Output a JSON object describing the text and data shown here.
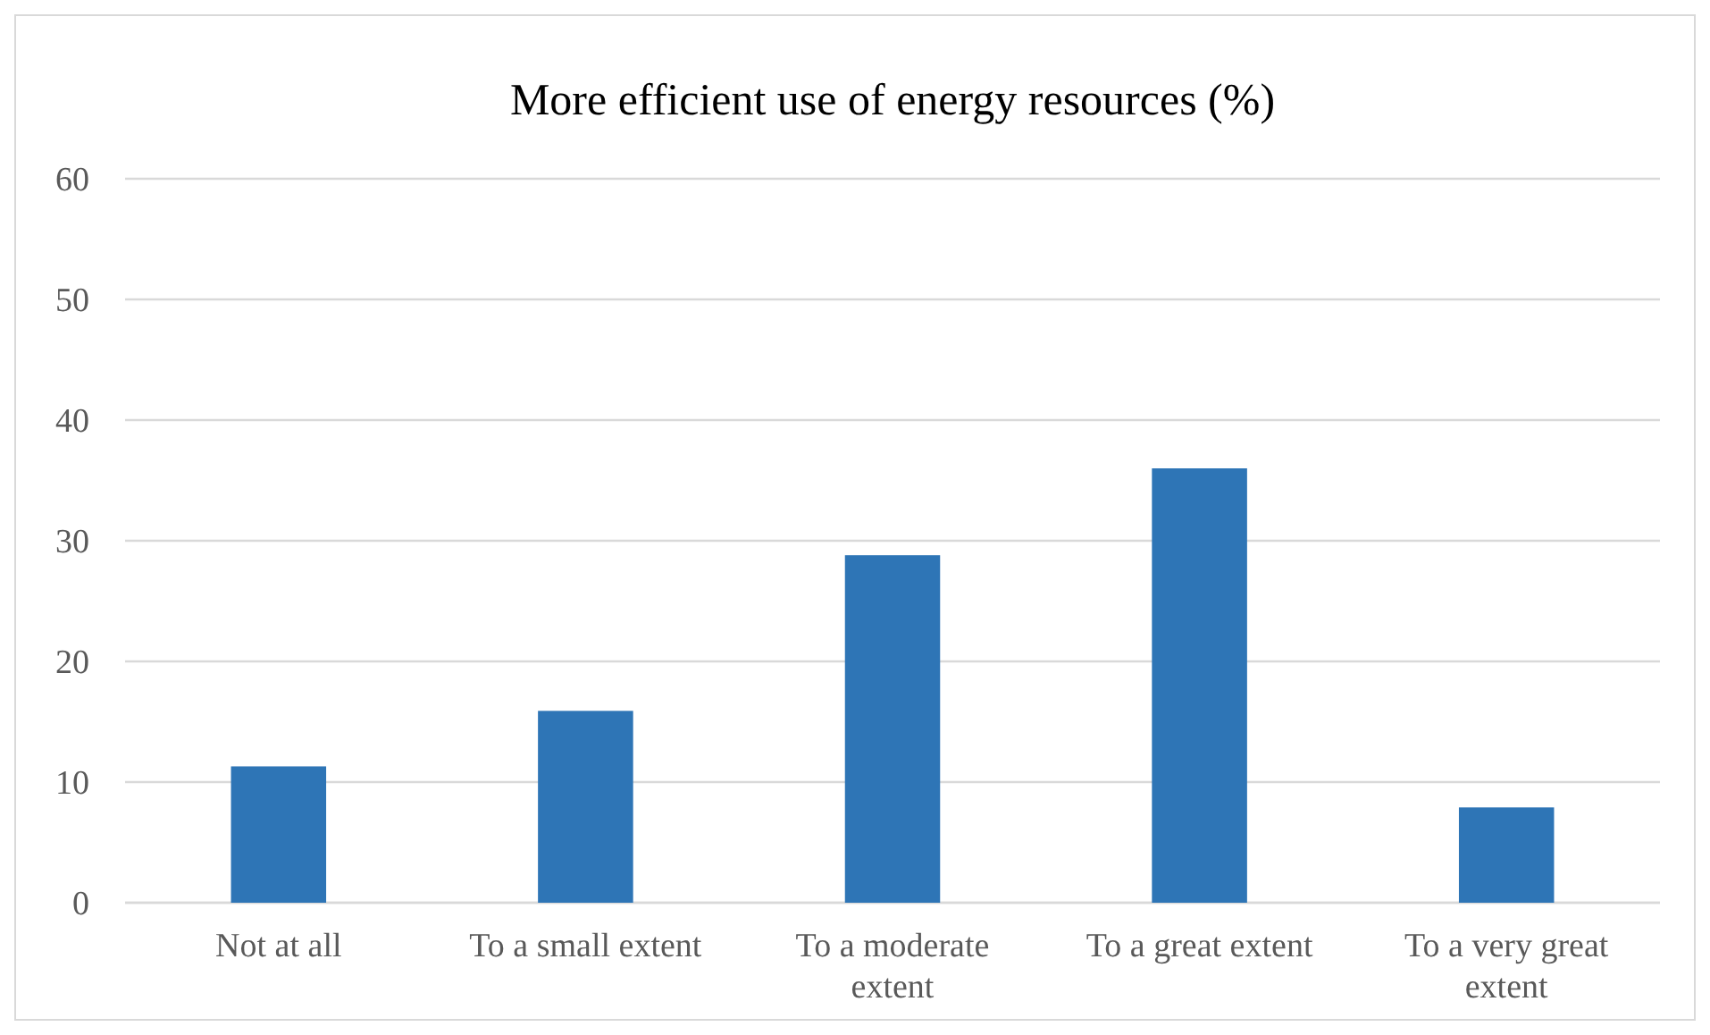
{
  "chart_data": {
    "type": "bar",
    "title": "More efficient use of energy resources (%)",
    "categories": [
      "Not at all",
      "To a small extent",
      "To a moderate extent",
      "To a great extent",
      "To a very great extent"
    ],
    "values": [
      11.3,
      15.9,
      28.8,
      36.0,
      7.9
    ],
    "color": "#2e75b6",
    "ylim": [
      0,
      60
    ],
    "yticks": [
      0,
      10,
      20,
      30,
      40,
      50,
      60
    ],
    "grid": "y"
  }
}
